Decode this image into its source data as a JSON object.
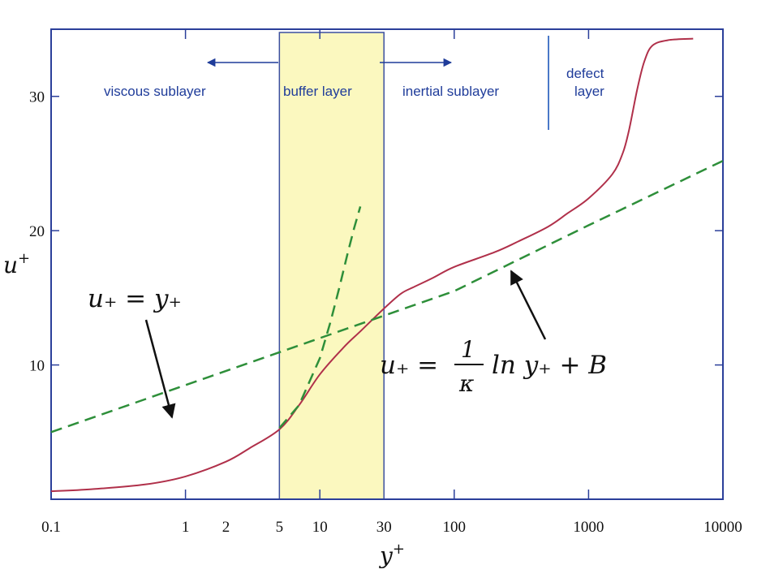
{
  "chart_data": {
    "type": "line",
    "x_scale": "log",
    "xlim": [
      0.1,
      10000
    ],
    "ylim": [
      0,
      35
    ],
    "xlabel": "y",
    "xlabel_sup": "+",
    "ylabel": "u",
    "ylabel_sup": "+",
    "x_ticks": [
      {
        "value": 0.1,
        "label": "0.1"
      },
      {
        "value": 1,
        "label": "1"
      },
      {
        "value": 2,
        "label": "2"
      },
      {
        "value": 5,
        "label": "5"
      },
      {
        "value": 10,
        "label": "10"
      },
      {
        "value": 30,
        "label": "30"
      },
      {
        "value": 100,
        "label": "100"
      },
      {
        "value": 1000,
        "label": "1000"
      },
      {
        "value": 10000,
        "label": "10000"
      }
    ],
    "x_ticks_marked": [
      1,
      10,
      100,
      1000
    ],
    "y_ticks": [
      {
        "value": 10,
        "label": "10"
      },
      {
        "value": 20,
        "label": "20"
      },
      {
        "value": 30,
        "label": "30"
      }
    ],
    "y_ticks_unlabeled": [
      0
    ],
    "series": [
      {
        "id": "velocity-profile",
        "color": "#b0304a",
        "x": [
          0.1,
          0.2,
          0.5,
          1,
          2,
          3,
          5,
          7,
          10,
          15,
          20,
          30,
          40,
          50,
          70,
          100,
          200,
          300,
          500,
          700,
          1000,
          1500,
          1800,
          2000,
          2300,
          2600,
          3000,
          4000,
          6000
        ],
        "y": [
          0.6,
          0.75,
          1.1,
          1.7,
          2.8,
          3.8,
          5.2,
          7.0,
          9.3,
          11.3,
          12.5,
          14.2,
          15.3,
          15.8,
          16.5,
          17.3,
          18.4,
          19.2,
          20.3,
          21.3,
          22.4,
          24.2,
          25.8,
          27.5,
          30.5,
          32.6,
          33.8,
          34.2,
          34.3
        ]
      },
      {
        "id": "log-law",
        "color": "#2e8f3a",
        "dash": true,
        "x": [
          0.1,
          1,
          10,
          100,
          1000,
          10000
        ],
        "y": [
          5.0,
          8.5,
          12.0,
          15.5,
          20.4,
          25.2
        ]
      },
      {
        "id": "viscous-law",
        "color": "#2e8f3a",
        "dash": true,
        "x": [
          5,
          7,
          10,
          12,
          14,
          16,
          18,
          20
        ],
        "y": [
          5.3,
          7.0,
          10.5,
          13.2,
          15.8,
          18.2,
          20.2,
          21.8
        ]
      }
    ],
    "regions": [
      {
        "id": "buffer",
        "x_from": 5,
        "x_to": 30,
        "fill": "#fbf8bf",
        "border": "#3b4fa0"
      }
    ],
    "region_labels": {
      "viscous": "viscous sublayer",
      "buffer": "buffer layer",
      "inertial": "inertial sublayer",
      "defect_line1": "defect",
      "defect_line2": "layer"
    },
    "annotations": {
      "viscous_eq": "u₊ = y₊",
      "log_eq_lhs": "u₊ =",
      "log_eq_num": "1",
      "log_eq_den": "κ",
      "log_eq_rhs": "ln y₊ + B"
    }
  },
  "colors": {
    "axis": "#2b3f9a",
    "arrow_blue": "#1f3c9a",
    "label_blue": "#1f3c9a",
    "curve": "#b0304a",
    "dashed": "#2e8f3a",
    "buffer_fill": "#fbf8bf"
  }
}
